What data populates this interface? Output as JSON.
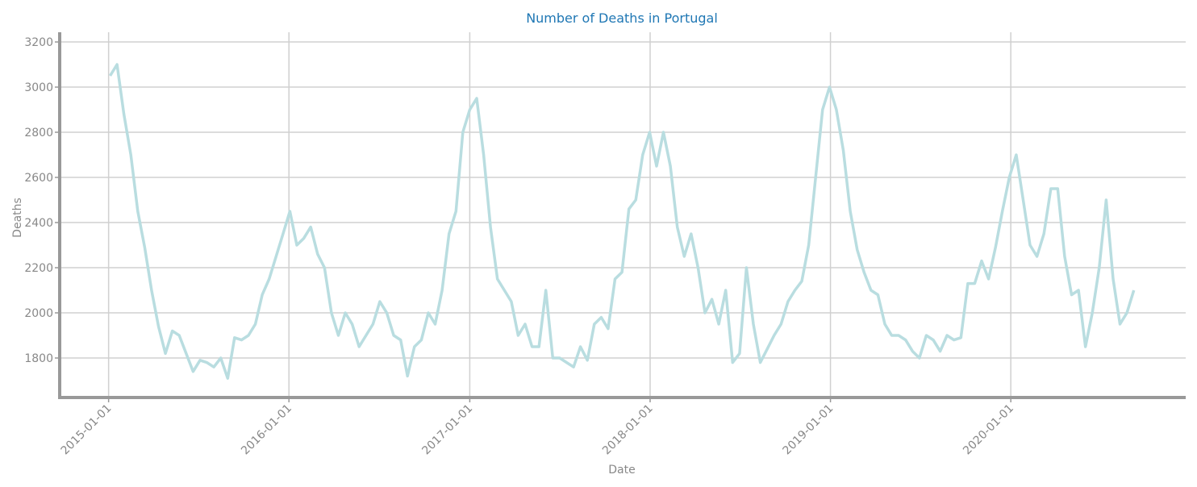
{
  "chart_data": {
    "type": "line",
    "title": "Number of Deaths in Portugal",
    "x_label": "Date",
    "y_label": "Deaths",
    "x": [
      "2015-01-04",
      "2015-01-18",
      "2015-02-01",
      "2015-02-15",
      "2015-03-01",
      "2015-03-15",
      "2015-03-29",
      "2015-04-12",
      "2015-04-26",
      "2015-05-10",
      "2015-05-24",
      "2015-06-07",
      "2015-06-21",
      "2015-07-05",
      "2015-07-19",
      "2015-08-02",
      "2015-08-16",
      "2015-08-30",
      "2015-09-13",
      "2015-09-27",
      "2015-10-11",
      "2015-10-25",
      "2015-11-08",
      "2015-11-22",
      "2015-12-06",
      "2015-12-20",
      "2016-01-03",
      "2016-01-17",
      "2016-01-31",
      "2016-02-14",
      "2016-02-28",
      "2016-03-13",
      "2016-03-27",
      "2016-04-10",
      "2016-04-24",
      "2016-05-08",
      "2016-05-22",
      "2016-06-05",
      "2016-06-19",
      "2016-07-03",
      "2016-07-17",
      "2016-07-31",
      "2016-08-14",
      "2016-08-28",
      "2016-09-11",
      "2016-09-25",
      "2016-10-09",
      "2016-10-23",
      "2016-11-06",
      "2016-11-20",
      "2016-12-04",
      "2016-12-18",
      "2017-01-01",
      "2017-01-15",
      "2017-01-29",
      "2017-02-12",
      "2017-02-26",
      "2017-03-12",
      "2017-03-26",
      "2017-04-09",
      "2017-04-23",
      "2017-05-07",
      "2017-05-21",
      "2017-06-04",
      "2017-06-18",
      "2017-07-02",
      "2017-07-16",
      "2017-07-30",
      "2017-08-13",
      "2017-08-27",
      "2017-09-10",
      "2017-09-24",
      "2017-10-08",
      "2017-10-22",
      "2017-11-05",
      "2017-11-19",
      "2017-12-03",
      "2017-12-17",
      "2017-12-31",
      "2018-01-14",
      "2018-01-28",
      "2018-02-11",
      "2018-02-25",
      "2018-03-11",
      "2018-03-25",
      "2018-04-08",
      "2018-04-22",
      "2018-05-06",
      "2018-05-20",
      "2018-06-03",
      "2018-06-17",
      "2018-07-01",
      "2018-07-15",
      "2018-07-29",
      "2018-08-12",
      "2018-08-26",
      "2018-09-09",
      "2018-09-23",
      "2018-10-07",
      "2018-10-21",
      "2018-11-04",
      "2018-11-18",
      "2018-12-02",
      "2018-12-16",
      "2018-12-30",
      "2019-01-13",
      "2019-01-27",
      "2019-02-10",
      "2019-02-24",
      "2019-03-10",
      "2019-03-24",
      "2019-04-07",
      "2019-04-21",
      "2019-05-05",
      "2019-05-19",
      "2019-06-02",
      "2019-06-16",
      "2019-06-30",
      "2019-07-14",
      "2019-07-28",
      "2019-08-11",
      "2019-08-25",
      "2019-09-08",
      "2019-09-22",
      "2019-10-06",
      "2019-10-20",
      "2019-11-03",
      "2019-11-17",
      "2019-12-01",
      "2019-12-15",
      "2019-12-29",
      "2020-01-12",
      "2020-01-26",
      "2020-02-09",
      "2020-02-23",
      "2020-03-08",
      "2020-03-22",
      "2020-04-05",
      "2020-04-19",
      "2020-05-03",
      "2020-05-17",
      "2020-05-31",
      "2020-06-14",
      "2020-06-28",
      "2020-07-12",
      "2020-07-26",
      "2020-08-09",
      "2020-08-23",
      "2020-09-06"
    ],
    "series": [
      {
        "name": "Deaths",
        "color": "#b9dde0",
        "values": [
          3050,
          3100,
          2880,
          2700,
          2450,
          2290,
          2100,
          1940,
          1820,
          1920,
          1900,
          1820,
          1740,
          1790,
          1780,
          1760,
          1800,
          1710,
          1890,
          1880,
          1900,
          1950,
          2080,
          2150,
          2250,
          2350,
          2450,
          2300,
          2330,
          2380,
          2260,
          2200,
          2000,
          1900,
          2000,
          1950,
          1850,
          1900,
          1950,
          2050,
          2000,
          1900,
          1880,
          1720,
          1850,
          1880,
          2000,
          1950,
          2100,
          2350,
          2450,
          2800,
          2900,
          2950,
          2700,
          2380,
          2150,
          2100,
          2050,
          1900,
          1950,
          1850,
          1850,
          2100,
          1800,
          1800,
          1780,
          1760,
          1850,
          1790,
          1950,
          1980,
          1930,
          2150,
          2180,
          2460,
          2500,
          2700,
          2800,
          2650,
          2800,
          2650,
          2380,
          2250,
          2350,
          2200,
          2000,
          2060,
          1950,
          2100,
          1780,
          1820,
          2200,
          1950,
          1780,
          1840,
          1900,
          1950,
          2050,
          2100,
          2140,
          2300,
          2600,
          2900,
          3000,
          2900,
          2720,
          2450,
          2280,
          2180,
          2100,
          2080,
          1950,
          1900,
          1900,
          1880,
          1830,
          1800,
          1900,
          1880,
          1830,
          1900,
          1880,
          1890,
          2130,
          2130,
          2230,
          2150,
          2290,
          2450,
          2600,
          2700,
          2500,
          2300,
          2250,
          2350,
          2550,
          2550,
          2250,
          2080,
          2100,
          1850,
          2000,
          2200,
          2500,
          2150,
          1950,
          2000,
          2100
        ]
      }
    ],
    "xlim": [
      "2014-09-24",
      "2020-12-20"
    ],
    "xticks": [
      "2015-01-01",
      "2016-01-01",
      "2017-01-01",
      "2018-01-01",
      "2019-01-01",
      "2020-01-01"
    ],
    "ylim": [
      1625,
      3243
    ],
    "yticks": [
      1800,
      2000,
      2200,
      2400,
      2600,
      2800,
      3000,
      3200
    ],
    "grid": true
  }
}
